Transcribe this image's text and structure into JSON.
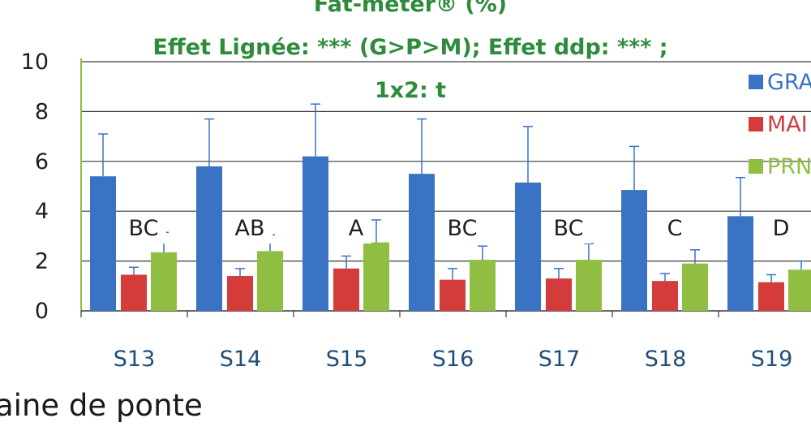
{
  "chart_data": {
    "type": "bar",
    "title_lines": [
      "Fat-meter® (%)",
      "Effet Lignée: *** (G>P>M); Effet ddp: *** ;",
      "1x2: t"
    ],
    "categories": [
      "S13",
      "S14",
      "S15",
      "S16",
      "S17",
      "S18",
      "S19"
    ],
    "series": [
      {
        "name": "GRA",
        "values": [
          5.4,
          5.8,
          6.2,
          5.5,
          5.15,
          4.85,
          3.8
        ],
        "errors": [
          1.7,
          1.9,
          2.1,
          2.2,
          2.25,
          1.75,
          1.55
        ]
      },
      {
        "name": "MAI",
        "values": [
          1.45,
          1.4,
          1.7,
          1.25,
          1.3,
          1.2,
          1.15
        ],
        "errors": [
          0.3,
          0.3,
          0.5,
          0.45,
          0.4,
          0.3,
          0.3
        ]
      },
      {
        "name": "PRN",
        "values": [
          2.35,
          2.4,
          2.75,
          2.05,
          2.05,
          1.9,
          1.65
        ],
        "errors": [
          0.8,
          0.65,
          0.9,
          0.55,
          0.65,
          0.55,
          0.35
        ]
      }
    ],
    "group_letters": [
      "BC",
      "AB",
      "A",
      "BC",
      "BC",
      "C",
      "D"
    ],
    "yticks": [
      0,
      2,
      4,
      6,
      8,
      10
    ],
    "ylim": [
      0,
      10
    ],
    "grid": true,
    "legend_position": "right"
  },
  "colors": {
    "GRA": "#3a72c4",
    "MAI": "#d43b3b",
    "PRN": "#8fbe43",
    "error_bar": "#3a72c4",
    "title": "#2e8b3a"
  },
  "footer": {
    "text": "aine de ponte"
  }
}
